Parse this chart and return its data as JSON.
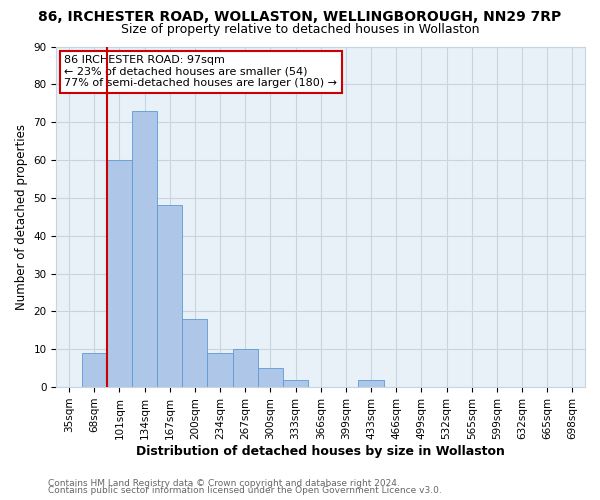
{
  "title1": "86, IRCHESTER ROAD, WOLLASTON, WELLINGBOROUGH, NN29 7RP",
  "title2": "Size of property relative to detached houses in Wollaston",
  "xlabel": "Distribution of detached houses by size in Wollaston",
  "ylabel": "Number of detached properties",
  "bar_labels": [
    "35sqm",
    "68sqm",
    "101sqm",
    "134sqm",
    "167sqm",
    "200sqm",
    "234sqm",
    "267sqm",
    "300sqm",
    "333sqm",
    "366sqm",
    "399sqm",
    "433sqm",
    "466sqm",
    "499sqm",
    "532sqm",
    "565sqm",
    "599sqm",
    "632sqm",
    "665sqm",
    "698sqm"
  ],
  "bar_values": [
    0,
    9,
    60,
    73,
    48,
    18,
    9,
    10,
    5,
    2,
    0,
    0,
    2,
    0,
    0,
    0,
    0,
    0,
    0,
    0,
    0
  ],
  "bar_color": "#aec6e8",
  "bar_edge_color": "#5b9bd5",
  "property_line_color": "#cc0000",
  "property_line_x": 1.5,
  "annotation_line1": "86 IRCHESTER ROAD: 97sqm",
  "annotation_line2": "← 23% of detached houses are smaller (54)",
  "annotation_line3": "77% of semi-detached houses are larger (180) →",
  "annotation_box_edge_color": "#cc0000",
  "ylim": [
    0,
    90
  ],
  "yticks": [
    0,
    10,
    20,
    30,
    40,
    50,
    60,
    70,
    80,
    90
  ],
  "grid_color": "#c8d4e0",
  "background_color": "#ffffff",
  "plot_bg_color": "#e8f0f8",
  "footer1": "Contains HM Land Registry data © Crown copyright and database right 2024.",
  "footer2": "Contains public sector information licensed under the Open Government Licence v3.0.",
  "title1_fontsize": 10,
  "title2_fontsize": 9,
  "xlabel_fontsize": 9,
  "ylabel_fontsize": 8.5,
  "tick_fontsize": 7.5,
  "annotation_fontsize": 8,
  "footer_fontsize": 6.5
}
